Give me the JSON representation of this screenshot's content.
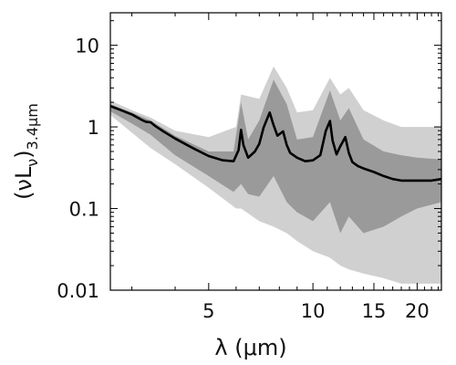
{
  "chart_data": {
    "type": "line",
    "title": "",
    "xlabel": "λ (μm)",
    "ylabel": "(νLν)3.4μm",
    "xscale": "log",
    "yscale": "log",
    "xlim": [
      2.6,
      23.5
    ],
    "ylim": [
      0.01,
      25
    ],
    "grid": false,
    "x_ticks": [
      5,
      10,
      15,
      20
    ],
    "x_tick_labels": [
      "5",
      "10",
      "15",
      "20"
    ],
    "y_ticks": [
      0.01,
      0.1,
      1,
      10
    ],
    "y_tick_labels": [
      "0.01",
      "0.1",
      "1",
      "10"
    ],
    "colors": {
      "median_line": "#000000",
      "inner_band": "#9a9a9a",
      "outer_band": "#d0d0d0",
      "faint_curves": "#ececec",
      "axes": "#000000"
    },
    "series": [
      {
        "role": "median template",
        "x": [
          2.6,
          3.0,
          3.2,
          3.3,
          3.4,
          3.5,
          3.7,
          4.0,
          4.5,
          5.0,
          5.5,
          5.9,
          6.1,
          6.2,
          6.3,
          6.5,
          6.8,
          7.0,
          7.2,
          7.5,
          7.7,
          7.9,
          8.2,
          8.4,
          8.6,
          9.0,
          9.5,
          10.0,
          10.5,
          10.9,
          11.2,
          11.4,
          11.7,
          12.0,
          12.4,
          12.7,
          13.0,
          13.5,
          14.0,
          15.0,
          16.0,
          17.0,
          18.0,
          20.0,
          22.0,
          23.5
        ],
        "y": [
          1.8,
          1.42,
          1.22,
          1.15,
          1.14,
          1.03,
          0.88,
          0.72,
          0.55,
          0.44,
          0.39,
          0.38,
          0.52,
          0.92,
          0.6,
          0.42,
          0.5,
          0.62,
          0.98,
          1.5,
          1.05,
          0.78,
          0.88,
          0.6,
          0.48,
          0.42,
          0.38,
          0.39,
          0.45,
          0.9,
          1.18,
          0.68,
          0.46,
          0.58,
          0.75,
          0.48,
          0.37,
          0.33,
          0.31,
          0.28,
          0.25,
          0.23,
          0.22,
          0.22,
          0.22,
          0.23
        ]
      },
      {
        "role": "inner range",
        "x": [
          2.6,
          3.0,
          3.4,
          4.0,
          5.0,
          5.9,
          6.2,
          6.5,
          7.0,
          7.7,
          8.4,
          9.0,
          10.0,
          11.2,
          12.0,
          12.7,
          14.0,
          16.0,
          18.0,
          20.0,
          23.5
        ],
        "upper": [
          1.9,
          1.5,
          1.2,
          0.78,
          0.5,
          0.5,
          2.0,
          0.7,
          1.2,
          3.8,
          1.9,
          0.7,
          0.75,
          2.8,
          1.2,
          1.7,
          0.7,
          0.5,
          0.45,
          0.42,
          0.4
        ],
        "lower": [
          1.55,
          1.1,
          0.8,
          0.45,
          0.25,
          0.16,
          0.2,
          0.15,
          0.14,
          0.25,
          0.12,
          0.09,
          0.07,
          0.12,
          0.05,
          0.08,
          0.05,
          0.06,
          0.08,
          0.1,
          0.12
        ]
      },
      {
        "role": "outer range",
        "x": [
          2.6,
          3.0,
          3.4,
          4.0,
          5.0,
          6.0,
          6.2,
          7.0,
          7.7,
          8.4,
          9.0,
          10.0,
          11.2,
          12.0,
          12.7,
          14.0,
          16.0,
          18.0,
          20.0,
          23.5
        ],
        "upper": [
          2.1,
          1.6,
          1.3,
          0.9,
          0.75,
          1.0,
          2.5,
          2.2,
          5.5,
          3.0,
          1.5,
          1.6,
          4.0,
          2.5,
          3.0,
          1.6,
          1.2,
          1.0,
          1.0,
          1.0
        ],
        "lower": [
          1.4,
          0.85,
          0.55,
          0.35,
          0.18,
          0.1,
          0.1,
          0.07,
          0.06,
          0.05,
          0.04,
          0.03,
          0.025,
          0.02,
          0.018,
          0.016,
          0.014,
          0.012,
          0.012,
          0.012
        ]
      }
    ]
  }
}
